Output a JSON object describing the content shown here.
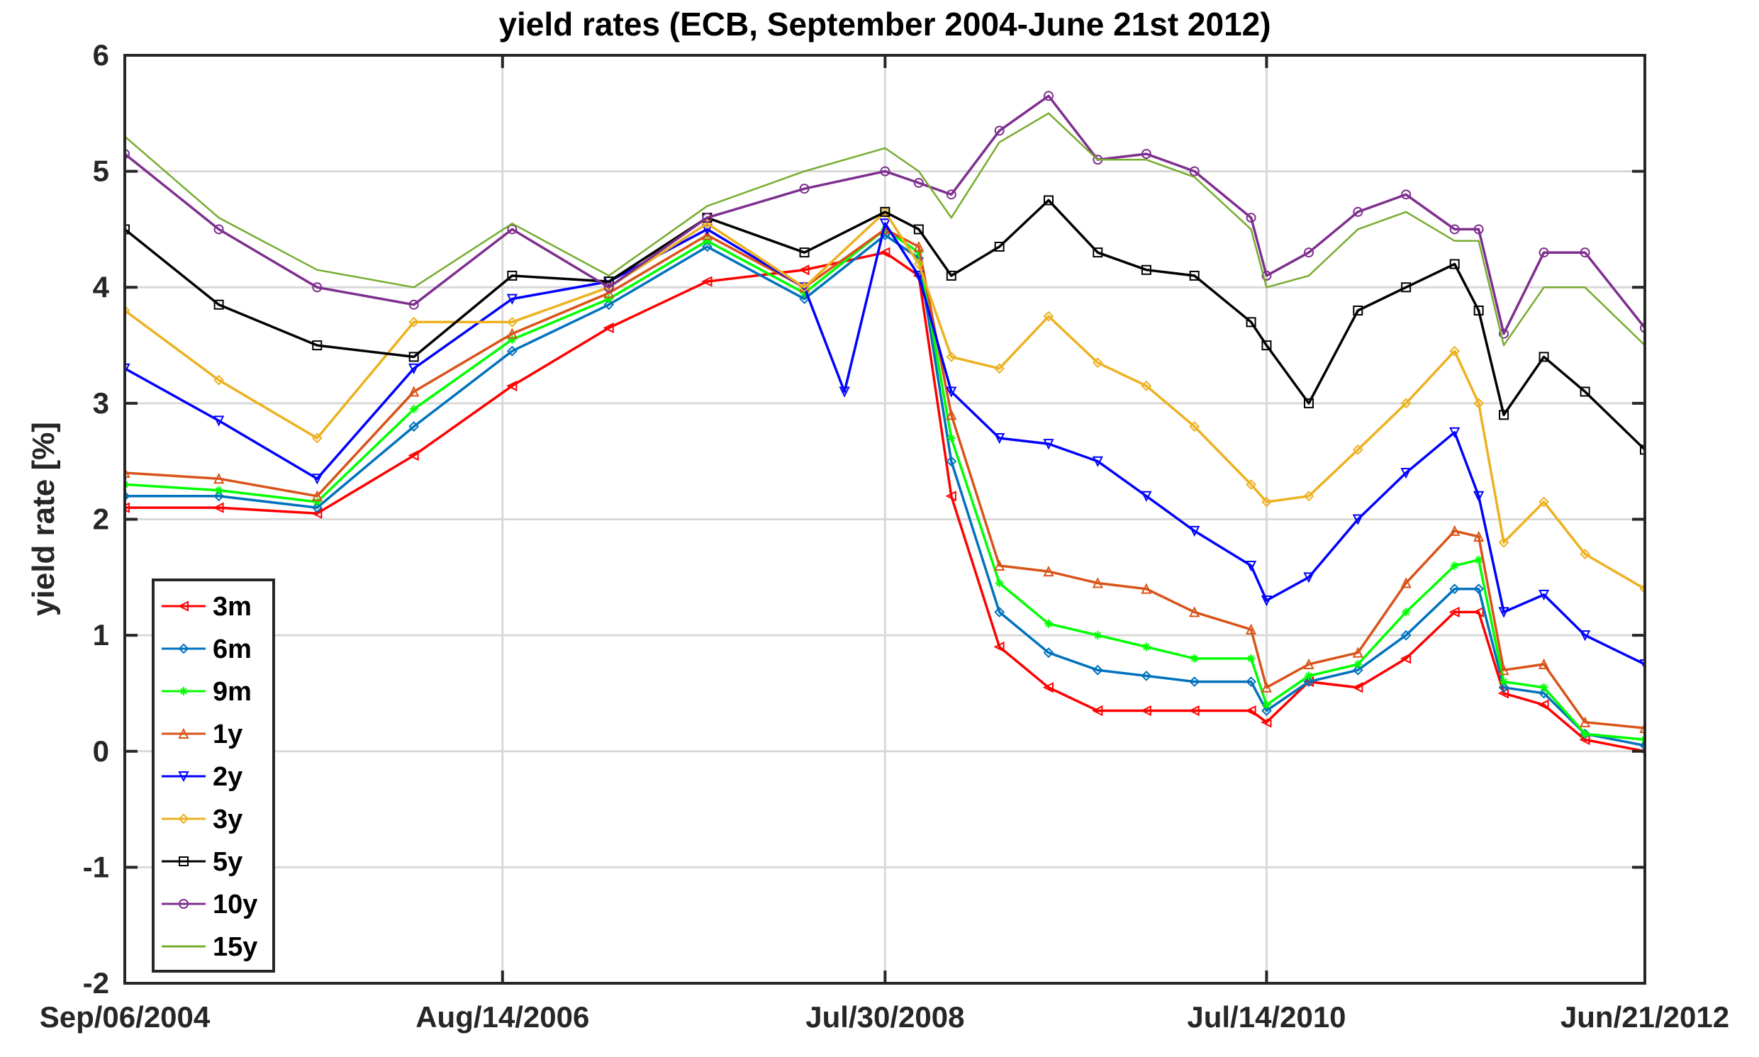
{
  "chart_data": {
    "type": "line",
    "title": "yield rates (ECB, September 2004-June 21st 2012)",
    "xlabel": "",
    "ylabel": "yield rate [%]",
    "ylim": [
      -2,
      6
    ],
    "yticks": [
      -2,
      -1,
      0,
      1,
      2,
      3,
      4,
      5,
      6
    ],
    "xlim": [
      "2004-09-06",
      "2012-06-21"
    ],
    "xticks": [
      {
        "date": "2004-09-06",
        "label": "Sep/06/2004"
      },
      {
        "date": "2006-08-14",
        "label": "Aug/14/2006"
      },
      {
        "date": "2008-07-30",
        "label": "Jul/30/2008"
      },
      {
        "date": "2010-07-14",
        "label": "Jul/14/2010"
      },
      {
        "date": "2012-06-21",
        "label": "Jun/21/2012"
      }
    ],
    "grid": true,
    "legend_position": "lower-left",
    "series": [
      {
        "name": "3m",
        "color": "#ff0000",
        "marker": "triangle-left",
        "x": [
          "2004-09-06",
          "2005-03-01",
          "2005-09-01",
          "2006-03-01",
          "2006-09-01",
          "2007-03-01",
          "2007-09-01",
          "2008-03-01",
          "2008-07-30",
          "2008-10-01",
          "2008-12-01",
          "2009-03-01",
          "2009-06-01",
          "2009-09-01",
          "2009-12-01",
          "2010-03-01",
          "2010-06-15",
          "2010-07-14",
          "2010-10-01",
          "2011-01-01",
          "2011-04-01",
          "2011-07-01",
          "2011-08-15",
          "2011-10-01",
          "2011-12-15",
          "2012-03-01",
          "2012-06-21"
        ],
        "y": [
          2.1,
          2.1,
          2.05,
          2.55,
          3.15,
          3.65,
          4.05,
          4.15,
          4.3,
          4.1,
          2.2,
          0.9,
          0.55,
          0.35,
          0.35,
          0.35,
          0.35,
          0.25,
          0.6,
          0.55,
          0.8,
          1.2,
          1.2,
          0.5,
          0.4,
          0.1,
          0.0
        ]
      },
      {
        "name": "6m",
        "color": "#0072bd",
        "marker": "diamond",
        "x": [
          "2004-09-06",
          "2005-03-01",
          "2005-09-01",
          "2006-03-01",
          "2006-09-01",
          "2007-03-01",
          "2007-09-01",
          "2008-03-01",
          "2008-07-30",
          "2008-10-01",
          "2008-12-01",
          "2009-03-01",
          "2009-06-01",
          "2009-09-01",
          "2009-12-01",
          "2010-03-01",
          "2010-06-15",
          "2010-07-14",
          "2010-10-01",
          "2011-01-01",
          "2011-04-01",
          "2011-07-01",
          "2011-08-15",
          "2011-10-01",
          "2011-12-15",
          "2012-03-01",
          "2012-06-21"
        ],
        "y": [
          2.2,
          2.2,
          2.1,
          2.8,
          3.45,
          3.85,
          4.35,
          3.9,
          4.45,
          4.25,
          2.5,
          1.2,
          0.85,
          0.7,
          0.65,
          0.6,
          0.6,
          0.35,
          0.6,
          0.7,
          1.0,
          1.4,
          1.4,
          0.55,
          0.5,
          0.15,
          0.05
        ]
      },
      {
        "name": "9m",
        "color": "#00ff00",
        "marker": "asterisk",
        "x": [
          "2004-09-06",
          "2005-03-01",
          "2005-09-01",
          "2006-03-01",
          "2006-09-01",
          "2007-03-01",
          "2007-09-01",
          "2008-03-01",
          "2008-07-30",
          "2008-10-01",
          "2008-12-01",
          "2009-03-01",
          "2009-06-01",
          "2009-09-01",
          "2009-12-01",
          "2010-03-01",
          "2010-06-15",
          "2010-07-14",
          "2010-10-01",
          "2011-01-01",
          "2011-04-01",
          "2011-07-01",
          "2011-08-15",
          "2011-10-01",
          "2011-12-15",
          "2012-03-01",
          "2012-06-21"
        ],
        "y": [
          2.3,
          2.25,
          2.15,
          2.95,
          3.55,
          3.9,
          4.4,
          3.95,
          4.5,
          4.3,
          2.7,
          1.45,
          1.1,
          1.0,
          0.9,
          0.8,
          0.8,
          0.4,
          0.65,
          0.75,
          1.2,
          1.6,
          1.65,
          0.6,
          0.55,
          0.15,
          0.1
        ]
      },
      {
        "name": "1y",
        "color": "#d95319",
        "marker": "triangle-up",
        "x": [
          "2004-09-06",
          "2005-03-01",
          "2005-09-01",
          "2006-03-01",
          "2006-09-01",
          "2007-03-01",
          "2007-09-01",
          "2008-03-01",
          "2008-07-30",
          "2008-10-01",
          "2008-12-01",
          "2009-03-01",
          "2009-06-01",
          "2009-09-01",
          "2009-12-01",
          "2010-03-01",
          "2010-06-15",
          "2010-07-14",
          "2010-10-01",
          "2011-01-01",
          "2011-04-01",
          "2011-07-01",
          "2011-08-15",
          "2011-10-01",
          "2011-12-15",
          "2012-03-01",
          "2012-06-21"
        ],
        "y": [
          2.4,
          2.35,
          2.2,
          3.1,
          3.6,
          3.95,
          4.45,
          4.0,
          4.5,
          4.35,
          2.9,
          1.6,
          1.55,
          1.45,
          1.4,
          1.2,
          1.05,
          0.55,
          0.75,
          0.85,
          1.45,
          1.9,
          1.85,
          0.7,
          0.75,
          0.25,
          0.2
        ]
      },
      {
        "name": "2y",
        "color": "#0000ff",
        "marker": "triangle-down",
        "x": [
          "2004-09-06",
          "2005-03-01",
          "2005-09-01",
          "2006-03-01",
          "2006-09-01",
          "2007-03-01",
          "2007-09-01",
          "2008-03-01",
          "2008-05-15",
          "2008-07-30",
          "2008-10-01",
          "2008-12-01",
          "2009-03-01",
          "2009-06-01",
          "2009-09-01",
          "2009-12-01",
          "2010-03-01",
          "2010-06-15",
          "2010-07-14",
          "2010-10-01",
          "2011-01-01",
          "2011-04-01",
          "2011-07-01",
          "2011-08-15",
          "2011-10-01",
          "2011-12-15",
          "2012-03-01",
          "2012-06-21"
        ],
        "y": [
          3.3,
          2.85,
          2.35,
          3.3,
          3.9,
          4.05,
          4.5,
          4.0,
          3.1,
          4.55,
          4.1,
          3.1,
          2.7,
          2.65,
          2.5,
          2.2,
          1.9,
          1.6,
          1.3,
          1.5,
          2.0,
          2.4,
          2.75,
          2.2,
          1.2,
          1.35,
          1.0,
          0.75
        ]
      },
      {
        "name": "3y",
        "color": "#edb120",
        "marker": "diamond",
        "x": [
          "2004-09-06",
          "2005-03-01",
          "2005-09-01",
          "2006-03-01",
          "2006-09-01",
          "2007-03-01",
          "2007-09-01",
          "2008-03-01",
          "2008-07-30",
          "2008-10-01",
          "2008-12-01",
          "2009-03-01",
          "2009-06-01",
          "2009-09-01",
          "2009-12-01",
          "2010-03-01",
          "2010-06-15",
          "2010-07-14",
          "2010-10-01",
          "2011-01-01",
          "2011-04-01",
          "2011-07-01",
          "2011-08-15",
          "2011-10-01",
          "2011-12-15",
          "2012-03-01",
          "2012-06-21"
        ],
        "y": [
          3.8,
          3.2,
          2.7,
          3.7,
          3.7,
          4.0,
          4.55,
          4.0,
          4.65,
          4.2,
          3.4,
          3.3,
          3.75,
          3.35,
          3.15,
          2.8,
          2.3,
          2.15,
          2.2,
          2.6,
          3.0,
          3.45,
          3.0,
          1.8,
          2.15,
          1.7,
          1.4
        ]
      },
      {
        "name": "5y",
        "color": "#000000",
        "marker": "square",
        "x": [
          "2004-09-06",
          "2005-03-01",
          "2005-09-01",
          "2006-03-01",
          "2006-09-01",
          "2007-03-01",
          "2007-09-01",
          "2008-03-01",
          "2008-07-30",
          "2008-10-01",
          "2008-12-01",
          "2009-03-01",
          "2009-06-01",
          "2009-09-01",
          "2009-12-01",
          "2010-03-01",
          "2010-06-15",
          "2010-07-14",
          "2010-10-01",
          "2011-01-01",
          "2011-04-01",
          "2011-07-01",
          "2011-08-15",
          "2011-10-01",
          "2011-12-15",
          "2012-03-01",
          "2012-06-21"
        ],
        "y": [
          4.5,
          3.85,
          3.5,
          3.4,
          4.1,
          4.05,
          4.6,
          4.3,
          4.65,
          4.5,
          4.1,
          4.35,
          4.75,
          4.3,
          4.15,
          4.1,
          3.7,
          3.5,
          3.0,
          3.8,
          4.0,
          4.2,
          3.8,
          2.9,
          3.4,
          3.1,
          2.6
        ]
      },
      {
        "name": "10y",
        "color": "#7e2f8e",
        "marker": "circle",
        "x": [
          "2004-09-06",
          "2005-03-01",
          "2005-09-01",
          "2006-03-01",
          "2006-09-01",
          "2007-03-01",
          "2007-09-01",
          "2008-03-01",
          "2008-07-30",
          "2008-10-01",
          "2008-12-01",
          "2009-03-01",
          "2009-06-01",
          "2009-09-01",
          "2009-12-01",
          "2010-03-01",
          "2010-06-15",
          "2010-07-14",
          "2010-10-01",
          "2011-01-01",
          "2011-04-01",
          "2011-07-01",
          "2011-08-15",
          "2011-10-01",
          "2011-12-15",
          "2012-03-01",
          "2012-06-21"
        ],
        "y": [
          5.15,
          4.5,
          4.0,
          3.85,
          4.5,
          4.0,
          4.6,
          4.85,
          5.0,
          4.9,
          4.8,
          5.35,
          5.65,
          5.1,
          5.15,
          5.0,
          4.6,
          4.1,
          4.3,
          4.65,
          4.8,
          4.5,
          4.5,
          3.6,
          4.3,
          4.3,
          3.65
        ]
      },
      {
        "name": "15y",
        "color": "#77ac30",
        "marker": "none",
        "x": [
          "2004-09-06",
          "2005-03-01",
          "2005-09-01",
          "2006-03-01",
          "2006-09-01",
          "2007-03-01",
          "2007-09-01",
          "2008-03-01",
          "2008-07-30",
          "2008-10-01",
          "2008-12-01",
          "2009-03-01",
          "2009-06-01",
          "2009-09-01",
          "2009-12-01",
          "2010-03-01",
          "2010-06-15",
          "2010-07-14",
          "2010-10-01",
          "2011-01-01",
          "2011-04-01",
          "2011-07-01",
          "2011-08-15",
          "2011-10-01",
          "2011-12-15",
          "2012-03-01",
          "2012-06-21"
        ],
        "y": [
          5.3,
          4.6,
          4.15,
          4.0,
          4.55,
          4.1,
          4.7,
          5.0,
          5.2,
          5.0,
          4.6,
          5.25,
          5.5,
          5.1,
          5.1,
          4.95,
          4.5,
          4.0,
          4.1,
          4.5,
          4.65,
          4.4,
          4.4,
          3.5,
          4.0,
          4.0,
          3.5
        ]
      }
    ]
  }
}
